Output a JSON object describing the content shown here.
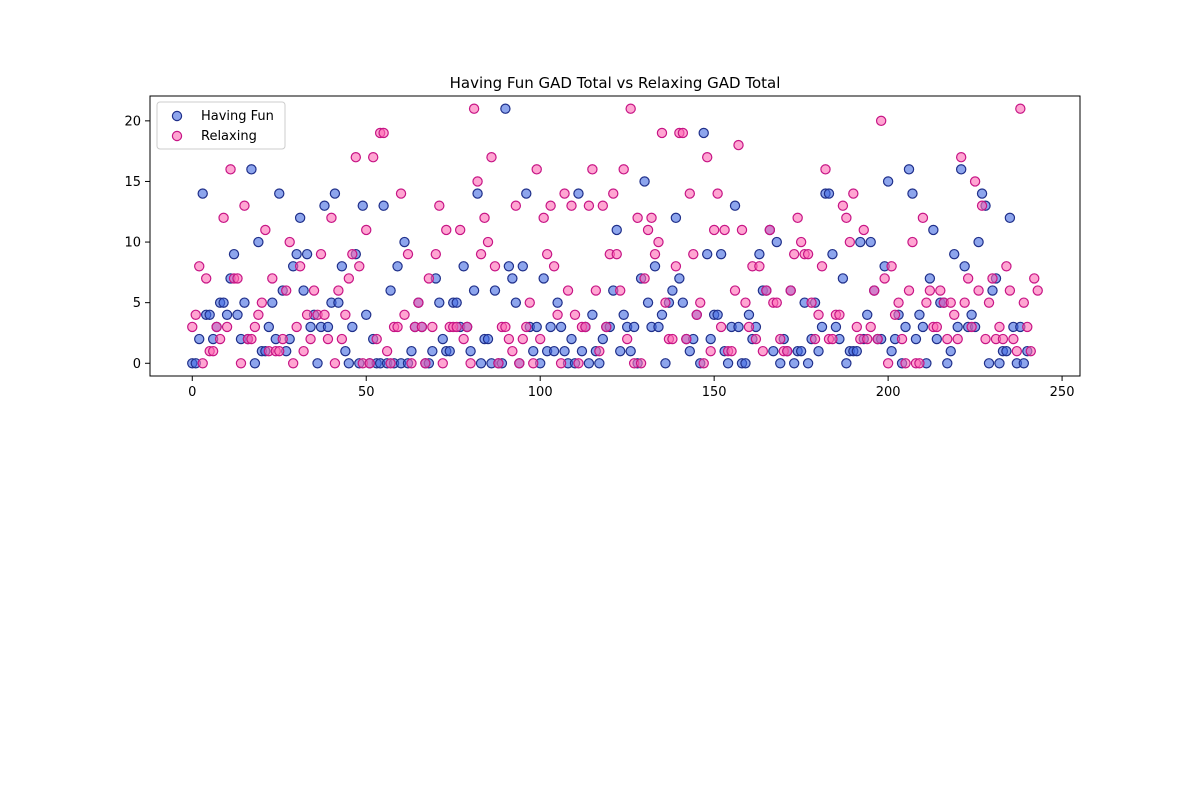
{
  "chart_data": {
    "type": "scatter",
    "title": "Having Fun GAD Total vs Relaxing GAD Total",
    "xlabel": "",
    "ylabel": "",
    "xlim": [
      -12.15,
      255.15
    ],
    "ylim": [
      -1.05,
      22.05
    ],
    "x_ticks": [
      0,
      50,
      100,
      150,
      200,
      250
    ],
    "y_ticks": [
      0,
      5,
      10,
      15,
      20
    ],
    "grid": false,
    "legend": {
      "placement": "upper-left"
    },
    "series": [
      {
        "name": "Having Fun",
        "color": "#4169e1",
        "edge": "#1f2f8a",
        "values": [
          0,
          0,
          2,
          14,
          4,
          4,
          2,
          3,
          5,
          5,
          4,
          7,
          9,
          4,
          2,
          5,
          2,
          16,
          0,
          10,
          1,
          1,
          3,
          5,
          2,
          14,
          6,
          1,
          2,
          8,
          9,
          12,
          6,
          9,
          3,
          4,
          0,
          3,
          13,
          3,
          5,
          14,
          5,
          8,
          1,
          0,
          3,
          9,
          0,
          13,
          4,
          0,
          2,
          0,
          0,
          13,
          0,
          6,
          0,
          8,
          0,
          10,
          0,
          1,
          3,
          5,
          3,
          0,
          0,
          1,
          7,
          5,
          2,
          1,
          1,
          5,
          5,
          3,
          8,
          3,
          1,
          6,
          14,
          0,
          2,
          2,
          0,
          6,
          0,
          0,
          21,
          8,
          7,
          5,
          0,
          8,
          14,
          3,
          1,
          3,
          0,
          7,
          1,
          3,
          1,
          5,
          3,
          1,
          0,
          2,
          0,
          14,
          1,
          3,
          0,
          4,
          1,
          0,
          2,
          3,
          3,
          6,
          11,
          1,
          4,
          3,
          1,
          3,
          0,
          7,
          15,
          5,
          3,
          8,
          3,
          4,
          0,
          5,
          6,
          12,
          7,
          5,
          2,
          1,
          2,
          4,
          0,
          19,
          9,
          2,
          4,
          4,
          9,
          1,
          0,
          3,
          13,
          3,
          0,
          0,
          4,
          2,
          3,
          9,
          6,
          6,
          11,
          1,
          10,
          0,
          2,
          1,
          6,
          0,
          1,
          1,
          5,
          0,
          2,
          5,
          1,
          3,
          14,
          14,
          9,
          3,
          2,
          7,
          0,
          1,
          1,
          1,
          10,
          2,
          4,
          10,
          6,
          2,
          2,
          8,
          15,
          1,
          2,
          4,
          0,
          3,
          16,
          14,
          2,
          4,
          3,
          0,
          7,
          11,
          2,
          5,
          5,
          0,
          1,
          9,
          3,
          16,
          8,
          3,
          4,
          3,
          10,
          14,
          13,
          0,
          6,
          7,
          0,
          1,
          1,
          12,
          3,
          0,
          3,
          0,
          1
        ]
      },
      {
        "name": "Relaxing",
        "color": "#ff69b4",
        "edge": "#c71585",
        "values": [
          3,
          4,
          8,
          0,
          7,
          1,
          1,
          3,
          2,
          12,
          3,
          16,
          7,
          7,
          0,
          13,
          2,
          2,
          3,
          4,
          5,
          11,
          1,
          7,
          1,
          1,
          2,
          6,
          10,
          0,
          3,
          8,
          1,
          4,
          2,
          6,
          4,
          9,
          4,
          2,
          12,
          0,
          6,
          2,
          4,
          7,
          9,
          17,
          8,
          0,
          11,
          0,
          17,
          2,
          19,
          19,
          1,
          0,
          3,
          3,
          14,
          4,
          9,
          0,
          3,
          5,
          3,
          0,
          7,
          3,
          9,
          13,
          0,
          11,
          3,
          3,
          3,
          11,
          2,
          3,
          0,
          21,
          15,
          9,
          12,
          10,
          17,
          8,
          0,
          3,
          3,
          2,
          1,
          13,
          0,
          2,
          3,
          5,
          0,
          16,
          2,
          12,
          9,
          13,
          8,
          4,
          0,
          14,
          6,
          13,
          4,
          0,
          3,
          3,
          13,
          16,
          6,
          1,
          13,
          3,
          9,
          14,
          9,
          6,
          16,
          2,
          21,
          0,
          12,
          0,
          7,
          11,
          12,
          9,
          10,
          19,
          5,
          2,
          2,
          8,
          19,
          19,
          2,
          14,
          9,
          4,
          5,
          0,
          17,
          1,
          11,
          14,
          3,
          11,
          1,
          1,
          6,
          18,
          11,
          5,
          3,
          8,
          2,
          8,
          1,
          6,
          11,
          5,
          5,
          2,
          1,
          1,
          6,
          9,
          12,
          10,
          9,
          9,
          5,
          2,
          4,
          8,
          16,
          2,
          2,
          4,
          4,
          13,
          12,
          10,
          14,
          3,
          2,
          11,
          2,
          3,
          6,
          2,
          20,
          7,
          0,
          8,
          4,
          5,
          2,
          0,
          6,
          10,
          0,
          0,
          12,
          5,
          6,
          3,
          3,
          6,
          5,
          2,
          5,
          4,
          2,
          17,
          5,
          7,
          3,
          15,
          6,
          13,
          2,
          5,
          7,
          2,
          3,
          2,
          8,
          6,
          2,
          1,
          21,
          5,
          3,
          1,
          7,
          6
        ]
      }
    ]
  }
}
